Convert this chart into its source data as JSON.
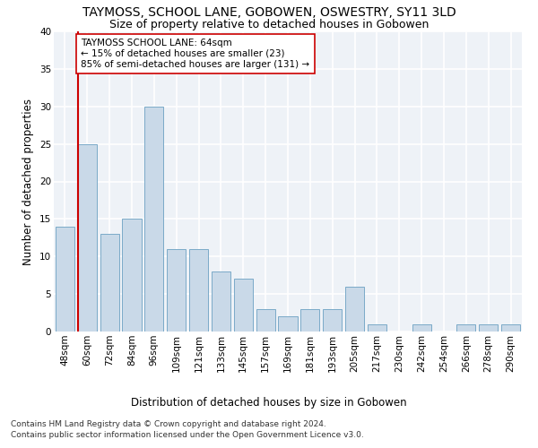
{
  "title": "TAYMOSS, SCHOOL LANE, GOBOWEN, OSWESTRY, SY11 3LD",
  "subtitle": "Size of property relative to detached houses in Gobowen",
  "xlabel": "Distribution of detached houses by size in Gobowen",
  "ylabel": "Number of detached properties",
  "categories": [
    "48sqm",
    "60sqm",
    "72sqm",
    "84sqm",
    "96sqm",
    "109sqm",
    "121sqm",
    "133sqm",
    "145sqm",
    "157sqm",
    "169sqm",
    "181sqm",
    "193sqm",
    "205sqm",
    "217sqm",
    "230sqm",
    "242sqm",
    "254sqm",
    "266sqm",
    "278sqm",
    "290sqm"
  ],
  "values": [
    14,
    25,
    13,
    15,
    30,
    11,
    11,
    8,
    7,
    3,
    2,
    3,
    3,
    6,
    1,
    0,
    1,
    0,
    1,
    1,
    1
  ],
  "bar_color": "#c9d9e8",
  "bar_edge_color": "#7aaac8",
  "vline_color": "#cc0000",
  "vline_pos": 0.575,
  "annotation_text": "TAYMOSS SCHOOL LANE: 64sqm\n← 15% of detached houses are smaller (23)\n85% of semi-detached houses are larger (131) →",
  "annotation_box_facecolor": "#ffffff",
  "annotation_box_edgecolor": "#cc0000",
  "ylim": [
    0,
    40
  ],
  "yticks": [
    0,
    5,
    10,
    15,
    20,
    25,
    30,
    35,
    40
  ],
  "bg_color": "#eef2f7",
  "grid_color": "#ffffff",
  "footer_line1": "Contains HM Land Registry data © Crown copyright and database right 2024.",
  "footer_line2": "Contains public sector information licensed under the Open Government Licence v3.0.",
  "title_fontsize": 10,
  "subtitle_fontsize": 9,
  "xlabel_fontsize": 8.5,
  "ylabel_fontsize": 8.5,
  "tick_fontsize": 7.5,
  "annotation_fontsize": 7.5,
  "footer_fontsize": 6.5
}
